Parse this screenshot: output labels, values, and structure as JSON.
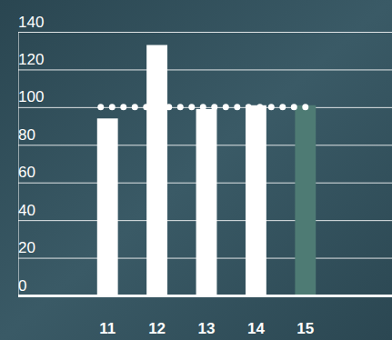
{
  "chart_data": {
    "type": "bar",
    "categories": [
      "11",
      "12",
      "13",
      "14",
      "15"
    ],
    "values": [
      94,
      133,
      99,
      101,
      101
    ],
    "colors": [
      "#ffffff",
      "#ffffff",
      "#ffffff",
      "#ffffff",
      "#4e7b74"
    ],
    "reference_line": 100,
    "ylim": [
      0,
      140
    ],
    "yticks": [
      0,
      20,
      40,
      60,
      80,
      100,
      120,
      140
    ],
    "grid": true
  }
}
